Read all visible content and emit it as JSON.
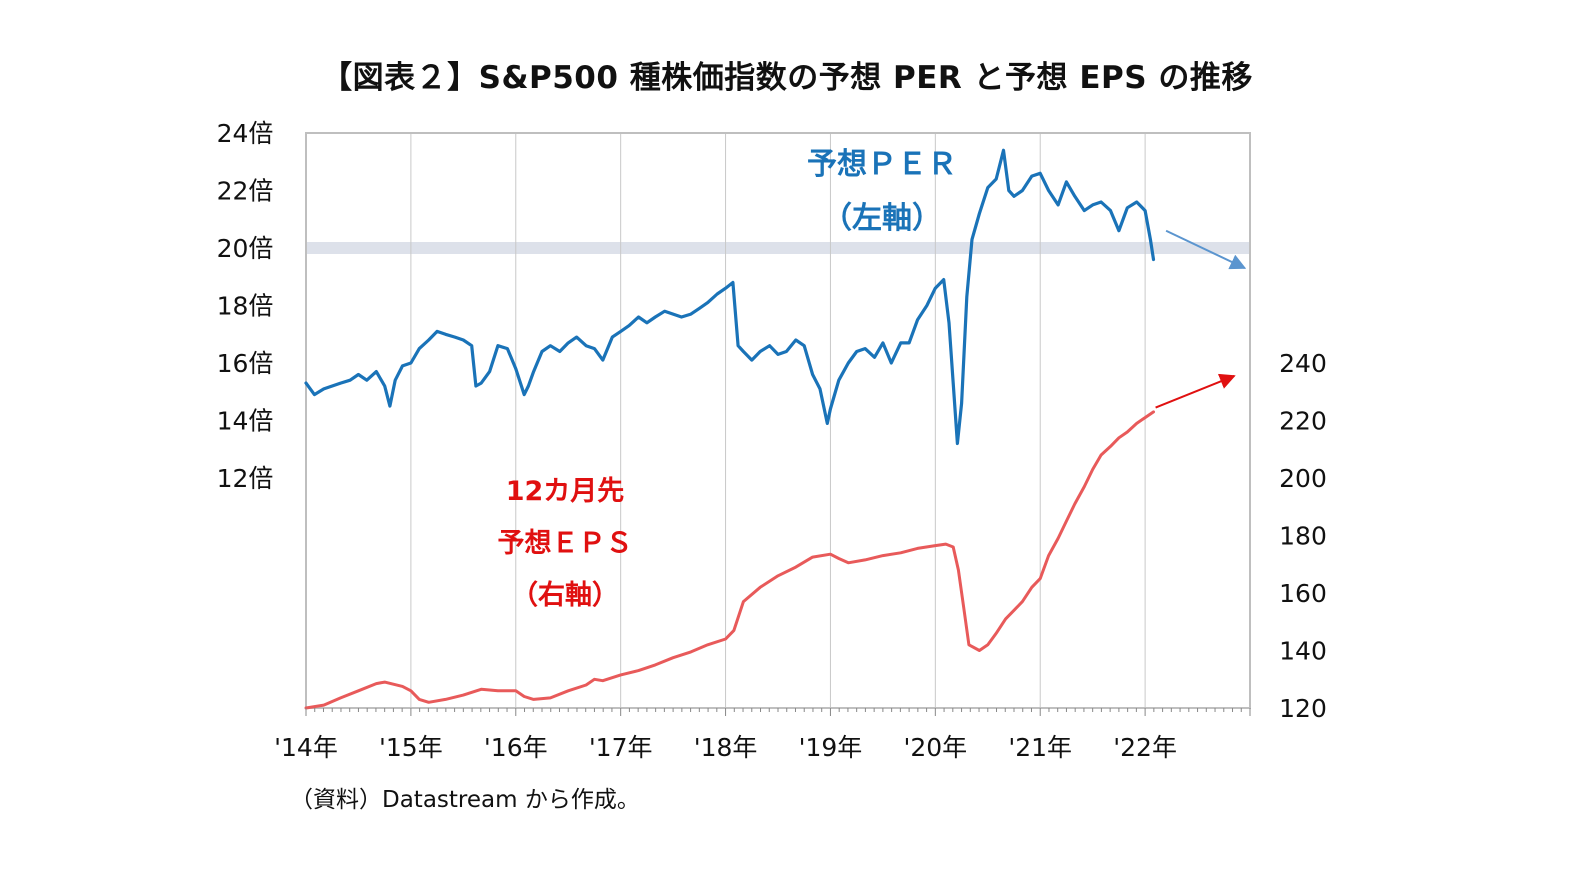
{
  "title": "【図表２】S&P500 種株価指数の予想 PER と予想 EPS の推移",
  "source": "（資料）Datastream から作成。",
  "chart_data": {
    "type": "line",
    "x_axis": {
      "ticks": [
        "'14年",
        "'15年",
        "'16年",
        "'17年",
        "'18年",
        "'19年",
        "'20年",
        "'21年",
        "'22年"
      ],
      "range": [
        2014.0,
        2023.0
      ]
    },
    "y_left": {
      "ticks": [
        "24倍",
        "22倍",
        "20倍",
        "18倍",
        "16倍",
        "14倍",
        "12倍"
      ],
      "tick_values": [
        24,
        22,
        20,
        18,
        16,
        14,
        12
      ],
      "range": [
        4,
        24
      ]
    },
    "y_right": {
      "ticks": [
        "240",
        "220",
        "200",
        "180",
        "160",
        "140",
        "120"
      ],
      "tick_values": [
        240,
        220,
        200,
        180,
        160,
        140,
        120
      ],
      "range": [
        120,
        320
      ]
    },
    "reference_band": {
      "axis": "left",
      "value": 20,
      "color": "#dde1ea"
    },
    "grid": {
      "vertical": true,
      "horizontal": false
    },
    "series": [
      {
        "axis": "left",
        "color": "#1a73b8",
        "label_lines": [
          "予想ＰＥＲ",
          "（左軸）"
        ],
        "points": [
          [
            2014.0,
            15.3
          ],
          [
            2014.08,
            14.9
          ],
          [
            2014.17,
            15.1
          ],
          [
            2014.25,
            15.2
          ],
          [
            2014.33,
            15.3
          ],
          [
            2014.42,
            15.4
          ],
          [
            2014.5,
            15.6
          ],
          [
            2014.58,
            15.4
          ],
          [
            2014.67,
            15.7
          ],
          [
            2014.75,
            15.2
          ],
          [
            2014.8,
            14.5
          ],
          [
            2014.85,
            15.4
          ],
          [
            2014.92,
            15.9
          ],
          [
            2015.0,
            16.0
          ],
          [
            2015.08,
            16.5
          ],
          [
            2015.17,
            16.8
          ],
          [
            2015.25,
            17.1
          ],
          [
            2015.33,
            17.0
          ],
          [
            2015.42,
            16.9
          ],
          [
            2015.5,
            16.8
          ],
          [
            2015.58,
            16.6
          ],
          [
            2015.62,
            15.2
          ],
          [
            2015.67,
            15.3
          ],
          [
            2015.75,
            15.7
          ],
          [
            2015.83,
            16.6
          ],
          [
            2015.92,
            16.5
          ],
          [
            2016.0,
            15.8
          ],
          [
            2016.08,
            14.9
          ],
          [
            2016.12,
            15.2
          ],
          [
            2016.17,
            15.7
          ],
          [
            2016.25,
            16.4
          ],
          [
            2016.33,
            16.6
          ],
          [
            2016.42,
            16.4
          ],
          [
            2016.5,
            16.7
          ],
          [
            2016.58,
            16.9
          ],
          [
            2016.67,
            16.6
          ],
          [
            2016.75,
            16.5
          ],
          [
            2016.83,
            16.1
          ],
          [
            2016.92,
            16.9
          ],
          [
            2017.0,
            17.1
          ],
          [
            2017.08,
            17.3
          ],
          [
            2017.17,
            17.6
          ],
          [
            2017.25,
            17.4
          ],
          [
            2017.33,
            17.6
          ],
          [
            2017.42,
            17.8
          ],
          [
            2017.5,
            17.7
          ],
          [
            2017.58,
            17.6
          ],
          [
            2017.67,
            17.7
          ],
          [
            2017.75,
            17.9
          ],
          [
            2017.83,
            18.1
          ],
          [
            2017.92,
            18.4
          ],
          [
            2018.0,
            18.6
          ],
          [
            2018.07,
            18.8
          ],
          [
            2018.12,
            16.6
          ],
          [
            2018.17,
            16.4
          ],
          [
            2018.25,
            16.1
          ],
          [
            2018.33,
            16.4
          ],
          [
            2018.42,
            16.6
          ],
          [
            2018.5,
            16.3
          ],
          [
            2018.58,
            16.4
          ],
          [
            2018.67,
            16.8
          ],
          [
            2018.75,
            16.6
          ],
          [
            2018.83,
            15.6
          ],
          [
            2018.9,
            15.1
          ],
          [
            2018.97,
            13.9
          ],
          [
            2019.0,
            14.4
          ],
          [
            2019.08,
            15.4
          ],
          [
            2019.17,
            16.0
          ],
          [
            2019.25,
            16.4
          ],
          [
            2019.33,
            16.5
          ],
          [
            2019.42,
            16.2
          ],
          [
            2019.5,
            16.7
          ],
          [
            2019.58,
            16.0
          ],
          [
            2019.67,
            16.7
          ],
          [
            2019.75,
            16.7
          ],
          [
            2019.83,
            17.5
          ],
          [
            2019.92,
            18.0
          ],
          [
            2020.0,
            18.6
          ],
          [
            2020.08,
            18.9
          ],
          [
            2020.13,
            17.4
          ],
          [
            2020.17,
            15.3
          ],
          [
            2020.21,
            13.2
          ],
          [
            2020.25,
            14.6
          ],
          [
            2020.3,
            18.3
          ],
          [
            2020.35,
            20.3
          ],
          [
            2020.42,
            21.2
          ],
          [
            2020.5,
            22.1
          ],
          [
            2020.58,
            22.4
          ],
          [
            2020.65,
            23.4
          ],
          [
            2020.7,
            22.0
          ],
          [
            2020.75,
            21.8
          ],
          [
            2020.83,
            22.0
          ],
          [
            2020.92,
            22.5
          ],
          [
            2021.0,
            22.6
          ],
          [
            2021.08,
            22.0
          ],
          [
            2021.17,
            21.5
          ],
          [
            2021.25,
            22.3
          ],
          [
            2021.33,
            21.8
          ],
          [
            2021.42,
            21.3
          ],
          [
            2021.5,
            21.5
          ],
          [
            2021.58,
            21.6
          ],
          [
            2021.67,
            21.3
          ],
          [
            2021.75,
            20.6
          ],
          [
            2021.83,
            21.4
          ],
          [
            2021.92,
            21.6
          ],
          [
            2022.0,
            21.3
          ],
          [
            2022.05,
            20.3
          ],
          [
            2022.08,
            19.6
          ]
        ]
      },
      {
        "axis": "right",
        "color": "#e85a5a",
        "label_lines": [
          "12カ月先",
          "予想ＥＰＳ",
          "（右軸）"
        ],
        "points": [
          [
            2014.0,
            120.0
          ],
          [
            2014.17,
            121.0
          ],
          [
            2014.33,
            123.5
          ],
          [
            2014.5,
            126.0
          ],
          [
            2014.67,
            128.5
          ],
          [
            2014.75,
            129.0
          ],
          [
            2014.92,
            127.5
          ],
          [
            2015.0,
            126.0
          ],
          [
            2015.08,
            123.0
          ],
          [
            2015.17,
            122.0
          ],
          [
            2015.33,
            123.0
          ],
          [
            2015.5,
            124.5
          ],
          [
            2015.67,
            126.5
          ],
          [
            2015.83,
            126.0
          ],
          [
            2016.0,
            126.0
          ],
          [
            2016.08,
            124.0
          ],
          [
            2016.17,
            123.0
          ],
          [
            2016.33,
            123.5
          ],
          [
            2016.5,
            126.0
          ],
          [
            2016.67,
            128.0
          ],
          [
            2016.75,
            130.0
          ],
          [
            2016.83,
            129.5
          ],
          [
            2017.0,
            131.5
          ],
          [
            2017.17,
            133.0
          ],
          [
            2017.33,
            135.0
          ],
          [
            2017.5,
            137.5
          ],
          [
            2017.67,
            139.5
          ],
          [
            2017.83,
            142.0
          ],
          [
            2018.0,
            144.0
          ],
          [
            2018.08,
            147.0
          ],
          [
            2018.17,
            157.0
          ],
          [
            2018.33,
            162.0
          ],
          [
            2018.5,
            166.0
          ],
          [
            2018.67,
            169.0
          ],
          [
            2018.83,
            172.5
          ],
          [
            2019.0,
            173.5
          ],
          [
            2019.08,
            172.0
          ],
          [
            2019.17,
            170.5
          ],
          [
            2019.33,
            171.5
          ],
          [
            2019.5,
            173.0
          ],
          [
            2019.67,
            174.0
          ],
          [
            2019.83,
            175.5
          ],
          [
            2020.0,
            176.5
          ],
          [
            2020.1,
            177.0
          ],
          [
            2020.17,
            176.0
          ],
          [
            2020.22,
            168.0
          ],
          [
            2020.27,
            155.0
          ],
          [
            2020.32,
            142.0
          ],
          [
            2020.42,
            140.0
          ],
          [
            2020.5,
            142.0
          ],
          [
            2020.58,
            146.0
          ],
          [
            2020.67,
            151.0
          ],
          [
            2020.75,
            154.0
          ],
          [
            2020.83,
            157.0
          ],
          [
            2020.92,
            162.0
          ],
          [
            2021.0,
            165.0
          ],
          [
            2021.08,
            173.0
          ],
          [
            2021.17,
            179.0
          ],
          [
            2021.25,
            185.0
          ],
          [
            2021.33,
            191.0
          ],
          [
            2021.42,
            197.0
          ],
          [
            2021.5,
            203.0
          ],
          [
            2021.58,
            208.0
          ],
          [
            2021.67,
            211.0
          ],
          [
            2021.75,
            214.0
          ],
          [
            2021.83,
            216.0
          ],
          [
            2021.92,
            219.0
          ],
          [
            2022.0,
            221.0
          ],
          [
            2022.08,
            223.0
          ]
        ]
      }
    ],
    "trend_arrows": [
      {
        "axis": "left",
        "color": "#5b95cf",
        "from": [
          2022.2,
          20.6
        ],
        "to": [
          2022.95,
          19.3
        ]
      },
      {
        "axis": "right",
        "color": "#e01010",
        "from": [
          2022.1,
          224.5
        ],
        "to": [
          2022.85,
          235.5
        ]
      }
    ]
  }
}
